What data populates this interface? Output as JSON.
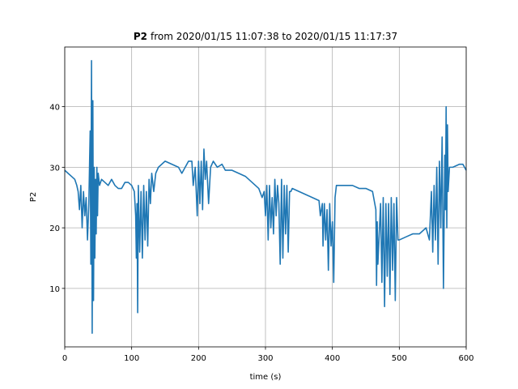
{
  "chart_data": {
    "type": "line",
    "title_parts": [
      "P2",
      "from 2020/01/15 11:07:38 to 2020/01/15 11:17:37"
    ],
    "xlabel": "time (s)",
    "ylabel": "P2",
    "xlim": [
      0,
      600
    ],
    "xticks": [
      0,
      100,
      200,
      300,
      400,
      500,
      600
    ],
    "ylim": [
      0.35,
      49.85
    ],
    "yticks": [
      10,
      20,
      30,
      40
    ],
    "grid": true,
    "x": [
      0,
      5,
      10,
      15,
      18,
      20,
      22,
      24,
      26,
      28,
      30,
      32,
      34,
      36,
      38,
      39,
      40,
      41,
      42,
      43,
      44,
      45,
      46,
      47,
      48,
      49,
      50,
      52,
      55,
      60,
      65,
      70,
      75,
      80,
      85,
      90,
      95,
      100,
      104,
      106,
      107,
      108,
      109,
      110,
      112,
      114,
      116,
      118,
      120,
      122,
      124,
      126,
      128,
      130,
      133,
      136,
      140,
      145,
      150,
      160,
      170,
      175,
      180,
      185,
      190,
      192,
      195,
      198,
      200,
      202,
      204,
      206,
      208,
      210,
      212,
      215,
      218,
      222,
      228,
      235,
      240,
      250,
      260,
      270,
      280,
      290,
      295,
      298,
      300,
      302,
      304,
      306,
      308,
      310,
      312,
      314,
      316,
      318,
      320,
      322,
      324,
      326,
      328,
      330,
      332,
      334,
      336,
      338,
      340,
      350,
      360,
      370,
      380,
      382,
      385,
      386,
      388,
      390,
      392,
      394,
      396,
      398,
      400,
      402,
      404,
      406,
      410,
      420,
      430,
      440,
      450,
      460,
      465,
      466,
      467,
      468,
      470,
      472,
      474,
      476,
      478,
      480,
      482,
      484,
      486,
      488,
      490,
      492,
      494,
      496,
      498,
      500,
      510,
      520,
      530,
      540,
      545,
      548,
      550,
      552,
      554,
      556,
      558,
      560,
      562,
      564,
      566,
      568,
      569,
      570,
      571,
      572,
      573,
      575,
      580,
      590,
      595,
      600
    ],
    "series": [
      {
        "name": "P2",
        "color": "#1f77b4",
        "values": [
          29.5,
          29,
          28.5,
          28,
          27,
          26,
          23,
          27,
          20,
          26,
          22,
          25,
          18,
          24,
          36,
          14,
          47.6,
          2.6,
          41,
          8,
          30,
          15,
          28,
          19,
          30,
          22,
          29,
          27,
          28,
          27.5,
          27,
          28,
          27,
          26.5,
          26.5,
          27.5,
          27.5,
          27,
          26,
          22,
          15,
          24,
          6,
          27,
          16,
          26,
          15,
          27,
          18,
          26,
          17,
          28,
          24,
          29,
          26,
          29,
          30,
          30.5,
          31,
          30.5,
          30,
          29,
          30,
          31,
          31,
          27,
          30,
          22,
          31,
          24,
          31,
          23,
          33,
          28,
          31,
          24,
          30,
          31,
          30,
          30.5,
          29.5,
          29.5,
          29,
          28.5,
          27.5,
          26.5,
          25,
          26,
          22,
          27,
          18,
          27,
          20,
          25,
          19,
          28,
          22,
          27,
          24,
          14,
          28,
          15,
          27,
          19,
          27,
          16,
          26,
          26,
          26.5,
          26,
          25.5,
          25,
          24.5,
          22,
          24,
          17,
          24,
          18,
          23,
          13,
          24,
          17,
          21,
          11,
          25,
          27,
          27,
          27,
          27,
          26.5,
          26.5,
          26,
          23,
          10.5,
          21,
          14,
          19,
          24,
          11,
          25,
          7,
          24,
          12,
          24,
          9,
          25,
          13,
          24,
          8,
          25,
          18,
          18,
          18.5,
          19,
          19,
          20,
          18,
          26,
          16,
          27,
          18,
          30,
          14,
          31,
          20,
          35,
          10,
          32,
          23,
          40,
          20,
          37,
          26,
          30,
          30,
          30.5,
          30.5,
          29.5
        ]
      }
    ]
  }
}
